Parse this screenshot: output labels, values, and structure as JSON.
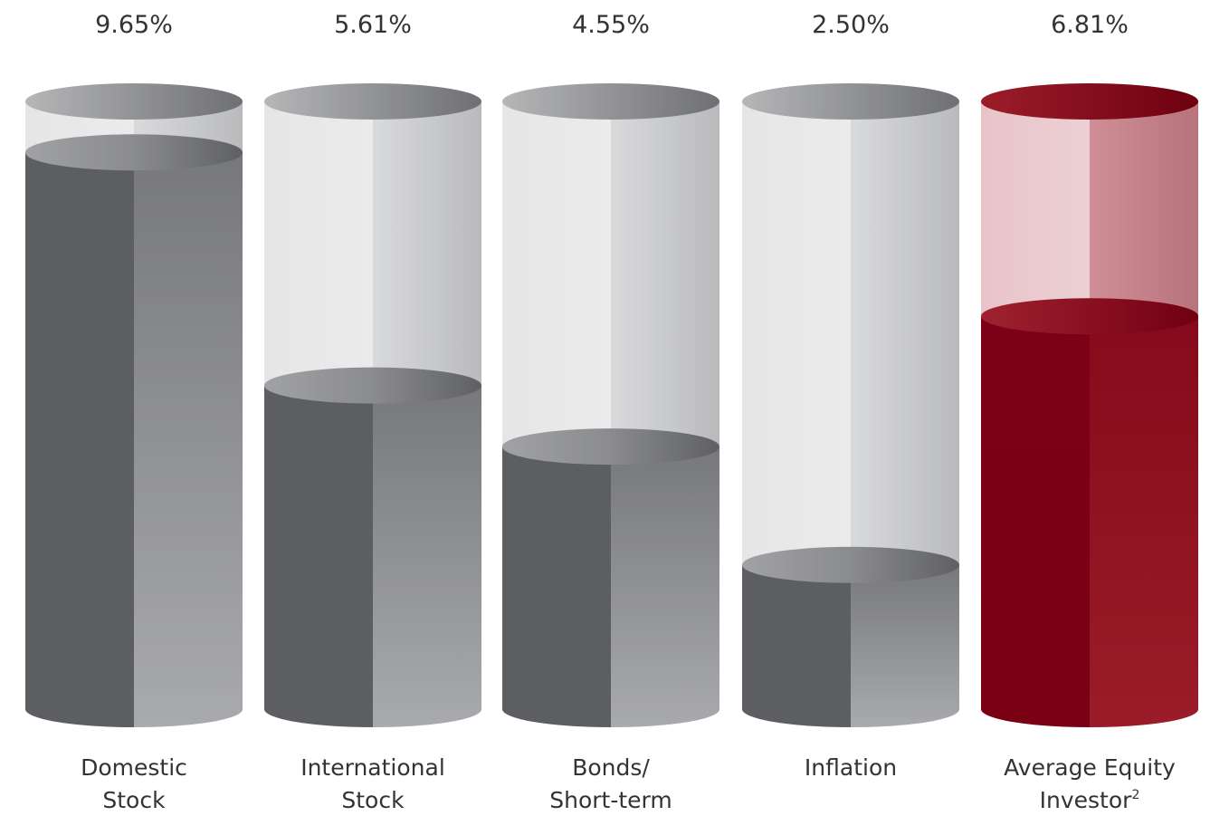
{
  "chart_data": {
    "type": "bar",
    "categories": [
      {
        "lines": [
          "Domestic",
          "Stock"
        ],
        "superscript": ""
      },
      {
        "lines": [
          "International",
          "Stock"
        ],
        "superscript": ""
      },
      {
        "lines": [
          "Bonds/",
          "Short-term"
        ],
        "superscript": ""
      },
      {
        "lines": [
          "Inflation"
        ],
        "superscript": ""
      },
      {
        "lines": [
          "Average Equity",
          "Investor"
        ],
        "superscript": "2"
      }
    ],
    "values": [
      9.65,
      5.61,
      4.55,
      2.5,
      6.81
    ],
    "value_labels": [
      "9.65%",
      "5.61%",
      "4.55%",
      "2.50%",
      "6.81%"
    ],
    "ylim": [
      0,
      10
    ],
    "title": "",
    "xlabel": "",
    "ylabel": "",
    "colors": {
      "neutral_fill_dark": "#5d5e61",
      "neutral_fill_light": "#a9aaad",
      "neutral_glass_light": "#ebebec",
      "neutral_glass_dark": "#b9babc",
      "highlight_fill_dark": "#7a0014",
      "highlight_fill_light": "#9b1c28",
      "highlight_glass_light": "#ecd0d3",
      "highlight_glass_dark": "#b8737c"
    },
    "highlight_index": 4,
    "grid": false,
    "legend": "none"
  }
}
